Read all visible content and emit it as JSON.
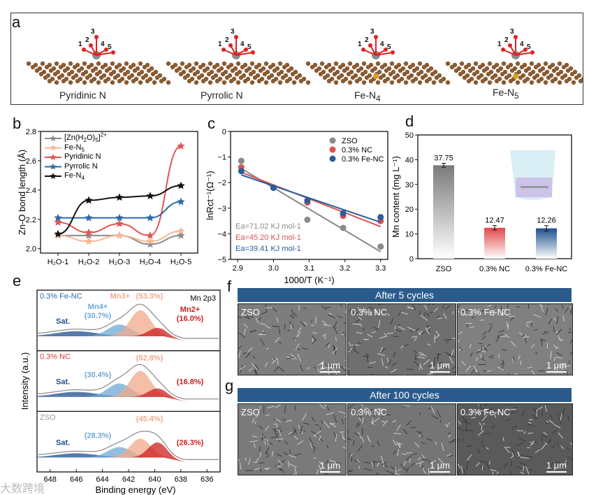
{
  "panels": {
    "a": "a",
    "b": "b",
    "c": "c",
    "d": "d",
    "e": "e",
    "f": "f",
    "g": "g"
  },
  "panel_a": {
    "structures": [
      {
        "label": "Pyridinic N",
        "atoms": [
          "1",
          "2",
          "3",
          "4",
          "5"
        ]
      },
      {
        "label": "Pyrrolic N",
        "atoms": [
          "1",
          "2",
          "3",
          "4",
          "5"
        ]
      },
      {
        "label": "Fe-N",
        "sub": "4",
        "atoms": [
          "1",
          "2",
          "3",
          "4",
          "5"
        ]
      },
      {
        "label": "Fe-N",
        "sub": "5",
        "atoms": [
          "1",
          "2",
          "3",
          "4",
          "5"
        ]
      }
    ]
  },
  "chart_data": [
    {
      "id": "b",
      "type": "line",
      "ylabel": "Zn-O bond length (Å)",
      "xlabel": "",
      "categories": [
        "H2O-1",
        "H2O-2",
        "H2O-3",
        "H2O-4",
        "H2O-5"
      ],
      "ylim": [
        1.97,
        2.8
      ],
      "yticks": [
        2.0,
        2.2,
        2.4,
        2.6,
        2.8
      ],
      "legend": "top-left",
      "series": [
        {
          "name": "[Zn(H2O)5]2+",
          "color": "#8c8c8c",
          "values": [
            2.09,
            2.09,
            2.09,
            2.03,
            2.09
          ]
        },
        {
          "name": "Fe-N5",
          "color": "#f7b796",
          "values": [
            2.09,
            2.05,
            2.09,
            2.05,
            2.12
          ]
        },
        {
          "name": "Pyridinic N",
          "color": "#e05555",
          "values": [
            2.18,
            2.11,
            2.17,
            2.09,
            2.7
          ]
        },
        {
          "name": "Pyrrolic N",
          "color": "#2f6aa5",
          "values": [
            2.21,
            2.21,
            2.21,
            2.21,
            2.32
          ]
        },
        {
          "name": "Fe-N4",
          "color": "#111111",
          "values": [
            2.1,
            2.33,
            2.35,
            2.36,
            2.43
          ]
        }
      ]
    },
    {
      "id": "c",
      "type": "scatter",
      "xlabel": "1000/T (K⁻¹)",
      "ylabel": "lnRct⁻¹(Ω⁻¹)",
      "xlim": [
        2.88,
        3.32
      ],
      "ylim": [
        -5,
        0
      ],
      "xticks": [
        2.9,
        3.0,
        3.1,
        3.2,
        3.3
      ],
      "yticks": [
        0,
        -1,
        -2,
        -3,
        -4,
        -5
      ],
      "legend": "top-right",
      "x": [
        2.91,
        3.0,
        3.095,
        3.195,
        3.3
      ],
      "series": [
        {
          "name": "ZSO",
          "color": "#8a8a8a",
          "values": [
            -1.15,
            -2.2,
            -3.45,
            -3.77,
            -4.5
          ],
          "fit": [
            -1.45,
            -4.7
          ],
          "ea": "Ea=71.02 KJ mol-1"
        },
        {
          "name": "0.3% NC",
          "color": "#e05050",
          "values": [
            -1.4,
            -2.2,
            -2.78,
            -3.3,
            -3.5
          ],
          "fit": [
            -1.6,
            -3.72
          ],
          "ea": "Ea=45.20 KJ mol-1"
        },
        {
          "name": "0.3% Fe-NC",
          "color": "#2a5d9c",
          "values": [
            -1.55,
            -2.2,
            -2.7,
            -3.2,
            -3.35
          ],
          "fit": [
            -1.7,
            -3.55
          ],
          "ea": "Ea=39.41 KJ mol-1"
        }
      ]
    },
    {
      "id": "d",
      "type": "bar",
      "ylabel": "Mn content (mg L⁻¹)",
      "ylim": [
        0,
        50
      ],
      "yticks": [
        0,
        10,
        20,
        30,
        40,
        50
      ],
      "categories": [
        "ZSO",
        "0.3% NC",
        "0.3% Fe-NC"
      ],
      "values": [
        37.75,
        12.47,
        12.26
      ],
      "labels": [
        "37.75",
        "12.47",
        "12.26"
      ],
      "errors": [
        0.8,
        0.9,
        1.1
      ],
      "colors": [
        "#7a7a7a",
        "#e04848",
        "#1f4f8c"
      ]
    },
    {
      "id": "e",
      "type": "area",
      "xlabel": "Binding energy (eV)",
      "ylabel": "Intensity (a.u.)",
      "xlim": [
        649,
        635
      ],
      "xticks": [
        648,
        646,
        644,
        642,
        640,
        638,
        636
      ],
      "corner_label": "Mn 2p3",
      "components": [
        "Sat.",
        "Mn4+",
        "Mn3+",
        "Mn2+"
      ],
      "series": [
        {
          "name": "0.3% Fe-NC",
          "color": "#2f6aa5",
          "fractions": [
            "(30.7%)",
            "(53.3%)",
            "(16.0%)"
          ],
          "amps": [
            0.12,
            0.28,
            0.62,
            0.2
          ]
        },
        {
          "name": "0.3% NC",
          "color": "#d63a3a",
          "fractions": [
            "(30.4%)",
            "(52.8%)",
            "(16.8%)"
          ],
          "amps": [
            0.12,
            0.32,
            0.62,
            0.2
          ]
        },
        {
          "name": "ZSO",
          "color": "#999999",
          "fractions": [
            "(28.3%)",
            "(45.4%)",
            "(26.3%)"
          ],
          "amps": [
            0.1,
            0.25,
            0.45,
            0.36
          ]
        }
      ]
    }
  ],
  "panel_b_legend": [
    {
      "main": "[Zn(H",
      "s1": "2",
      "mid": "O)",
      "s2": "5",
      "end": "]",
      "sup": "2+"
    },
    {
      "main": "Fe-N",
      "s1": "5"
    },
    {
      "main": "Pyridinic N"
    },
    {
      "main": "Pyrrolic N"
    },
    {
      "main": "Fe-N",
      "s1": "4"
    }
  ],
  "sem": {
    "f_header": "After 5 cycles",
    "g_header": "After 100 cycles",
    "labels": [
      "ZSO",
      "0.3% NC",
      "0.3% Fe-NC"
    ],
    "scale": "1 μm"
  },
  "watermark": "大数跨境"
}
